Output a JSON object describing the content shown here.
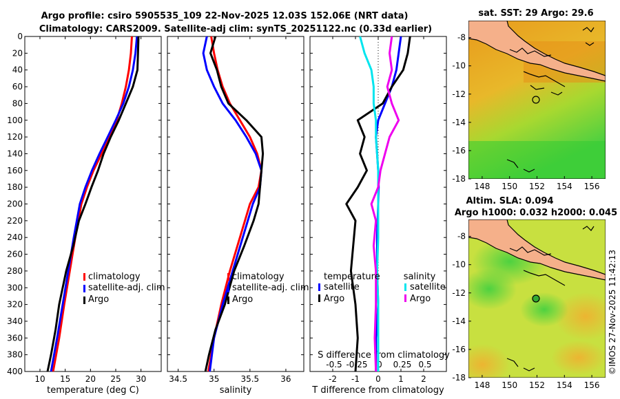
{
  "header": {
    "line1": "Argo profile: csiro 5905535_109 22-Nov-2025 12.03S 152.06E (NRT data)",
    "line2": "Climatology: CARS2009. Satellite-adj clim: synTS_20251122.nc (0.33d earlier)"
  },
  "colors": {
    "climatology": "#ff0000",
    "satellite": "#0000ff",
    "argo": "#000000",
    "sat_t_diff": "#00e5ee",
    "argo_s_diff": "#ee00ee",
    "land": "#f5b08a",
    "sst_field": "#e8a020",
    "sla_field": "#d8e040"
  },
  "credit": "©IMOS 27-Nov-2025 11:42:13",
  "chart_data": [
    {
      "id": "temperature",
      "type": "line",
      "xlabel": "temperature (deg C)",
      "ylabel": "",
      "xlim": [
        7,
        34
      ],
      "ylim": [
        0,
        400
      ],
      "y_inverted": true,
      "xticks": [
        10,
        15,
        20,
        25,
        30
      ],
      "yticks": [
        0,
        20,
        40,
        60,
        80,
        100,
        120,
        140,
        160,
        180,
        200,
        220,
        240,
        260,
        280,
        300,
        320,
        340,
        360,
        380,
        400
      ],
      "legend": [
        "climatology",
        "satellite-adj. clim",
        "Argo"
      ],
      "series": [
        {
          "name": "climatology",
          "color_key": "climatology",
          "x": [
            28.2,
            28.0,
            27.6,
            27.0,
            26.2,
            25.2,
            23.8,
            22.2,
            20.6,
            19.3,
            18.2,
            17.0,
            15.9,
            14.8,
            13.8,
            12.6
          ],
          "y": [
            0,
            20,
            40,
            60,
            80,
            100,
            120,
            140,
            160,
            180,
            200,
            240,
            280,
            320,
            360,
            400
          ]
        },
        {
          "name": "satellite-adj. clim",
          "color_key": "satellite",
          "x": [
            29.2,
            28.9,
            28.4,
            27.6,
            26.5,
            25.0,
            23.4,
            21.8,
            20.3,
            19.0,
            17.9,
            16.7,
            15.6,
            14.5,
            13.4,
            12.2
          ],
          "y": [
            0,
            20,
            40,
            60,
            80,
            100,
            120,
            140,
            160,
            180,
            200,
            240,
            280,
            320,
            360,
            400
          ]
        },
        {
          "name": "Argo",
          "color_key": "argo",
          "x": [
            29.5,
            29.4,
            29.3,
            28.4,
            27.0,
            25.6,
            24.0,
            22.6,
            21.5,
            20.2,
            19.0,
            17.7,
            16.6,
            15.2,
            13.8,
            13.1,
            12.2,
            11.5
          ],
          "y": [
            0,
            20,
            40,
            60,
            80,
            100,
            120,
            140,
            160,
            180,
            200,
            220,
            250,
            280,
            320,
            350,
            380,
            400
          ]
        }
      ]
    },
    {
      "id": "salinity",
      "type": "line",
      "xlabel": "salinity",
      "ylabel": "",
      "xlim": [
        34.35,
        36.25
      ],
      "ylim": [
        0,
        400
      ],
      "y_inverted": true,
      "xticks": [
        34.5,
        35,
        35.5,
        36
      ],
      "xticklabels": [
        "34.5",
        "35",
        "35.5",
        "36"
      ],
      "legend": [
        "climatology",
        "satellite-adj. clim",
        "Argo"
      ],
      "series": [
        {
          "name": "climatology",
          "color_key": "climatology",
          "x": [
            34.96,
            35.0,
            35.05,
            35.12,
            35.22,
            35.36,
            35.5,
            35.6,
            35.66,
            35.62,
            35.5,
            35.36,
            35.22,
            35.1,
            35.0,
            34.92
          ],
          "y": [
            0,
            20,
            40,
            60,
            80,
            100,
            120,
            140,
            160,
            180,
            200,
            240,
            280,
            320,
            360,
            400
          ]
        },
        {
          "name": "satellite-adj. clim",
          "color_key": "satellite",
          "x": [
            34.9,
            34.85,
            34.9,
            35.0,
            35.12,
            35.3,
            35.45,
            35.58,
            35.66,
            35.64,
            35.54,
            35.4,
            35.26,
            35.12,
            35.0,
            34.94
          ],
          "y": [
            0,
            20,
            40,
            60,
            80,
            100,
            120,
            140,
            160,
            180,
            200,
            240,
            280,
            320,
            360,
            400
          ]
        },
        {
          "name": "Argo",
          "color_key": "argo",
          "x": [
            35.02,
            34.95,
            35.04,
            35.1,
            35.2,
            35.45,
            35.66,
            35.68,
            35.66,
            35.64,
            35.62,
            35.55,
            35.42,
            35.28,
            35.15,
            35.02,
            34.93,
            34.88
          ],
          "y": [
            0,
            20,
            40,
            60,
            80,
            100,
            120,
            140,
            160,
            180,
            200,
            220,
            250,
            280,
            320,
            350,
            380,
            400
          ]
        }
      ]
    },
    {
      "id": "differences",
      "type": "line",
      "xlabel": "T difference from climatology",
      "x2label": "S difference from climatology",
      "ylabel": "",
      "xlim": [
        -3,
        3
      ],
      "ylim": [
        0,
        400
      ],
      "y_inverted": true,
      "xticks": [
        -2,
        -1,
        0,
        1,
        2
      ],
      "x2ticklabels": [
        "-0.5",
        "-0.25",
        "0",
        "0.25",
        "0.5"
      ],
      "legend_temperature_title": "temperature",
      "legend_salinity_title": "salinity",
      "legend_entries": [
        {
          "label": "satellite",
          "color_key": "satellite"
        },
        {
          "label": "Argo",
          "color_key": "argo"
        },
        {
          "label": "satellite",
          "color_key": "sat_t_diff"
        },
        {
          "label": "Argo",
          "color_key": "argo_s_diff"
        }
      ],
      "series": [
        {
          "name": "T satellite - clim",
          "color_key": "satellite",
          "x": [
            1.0,
            0.9,
            0.8,
            0.6,
            0.3,
            0.0,
            -0.1,
            -0.05,
            0.0,
            0.02,
            0.0,
            -0.05,
            -0.05,
            0.0,
            -0.1,
            -0.1
          ],
          "y": [
            0,
            20,
            40,
            60,
            80,
            100,
            120,
            140,
            160,
            180,
            200,
            240,
            280,
            320,
            360,
            400
          ]
        },
        {
          "name": "T Argo - clim",
          "color_key": "argo",
          "x": [
            1.4,
            1.3,
            1.1,
            0.6,
            0.2,
            -0.9,
            -0.6,
            -0.8,
            -0.5,
            -0.9,
            -1.4,
            -1.0,
            -1.1,
            -1.2,
            -1.0,
            -0.9,
            -1.0
          ],
          "y": [
            0,
            20,
            40,
            60,
            80,
            100,
            120,
            140,
            160,
            180,
            200,
            220,
            250,
            280,
            320,
            360,
            400
          ]
        },
        {
          "name": "S satellite - clim",
          "color_key": "sat_t_diff",
          "x": [
            -0.8,
            -0.6,
            -0.3,
            -0.2,
            -0.2,
            -0.1,
            -0.1,
            -0.05,
            0.0,
            0.0,
            0.0,
            0.0,
            -0.05,
            0.0,
            0.0,
            0.0
          ],
          "y": [
            0,
            20,
            40,
            60,
            80,
            100,
            120,
            140,
            160,
            180,
            200,
            240,
            280,
            320,
            360,
            400
          ]
        },
        {
          "name": "S Argo - clim",
          "color_key": "argo_s_diff",
          "x": [
            0.6,
            0.5,
            0.6,
            0.4,
            0.6,
            0.9,
            0.5,
            0.3,
            0.1,
            0.0,
            -0.3,
            -0.1,
            -0.2,
            -0.1,
            -0.1,
            -0.15,
            -0.1
          ],
          "y": [
            0,
            20,
            40,
            60,
            80,
            100,
            120,
            140,
            160,
            180,
            200,
            220,
            250,
            280,
            320,
            360,
            400
          ]
        }
      ]
    },
    {
      "id": "sst_map",
      "type": "heatmap",
      "title": "sat. SST: 29 Argo: 29.6",
      "xlim": [
        147,
        157
      ],
      "ylim": [
        -18,
        -6.8
      ],
      "xticks": [
        148,
        150,
        152,
        154,
        156
      ],
      "yticks": [
        -8,
        -10,
        -12,
        -14,
        -16,
        -18
      ],
      "float_position": {
        "lon": 152.06,
        "lat": -12.03
      }
    },
    {
      "id": "sla_map",
      "type": "heatmap",
      "title1": "Altim. SLA: 0.094",
      "title2": "Argo h1000: 0.032 h2000: 0.045",
      "xlim": [
        147,
        157
      ],
      "ylim": [
        -18,
        -6.8
      ],
      "xticks": [
        148,
        150,
        152,
        154,
        156
      ],
      "yticks": [
        -8,
        -10,
        -12,
        -14,
        -16,
        -18
      ],
      "float_position": {
        "lon": 152.06,
        "lat": -12.03
      }
    }
  ]
}
